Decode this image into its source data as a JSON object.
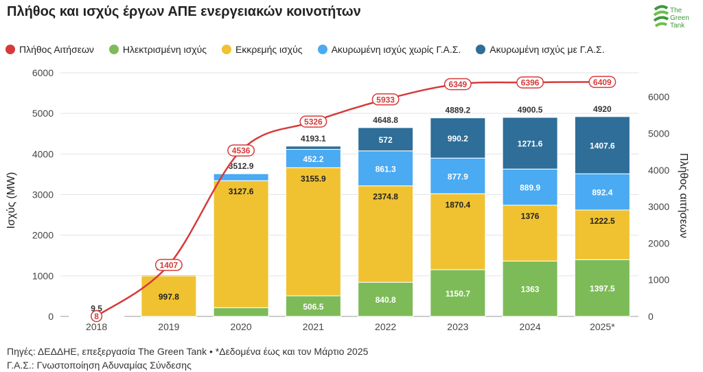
{
  "title": "Πλήθος και ισχύς έργων ΑΠΕ ενεργειακών κοινοτήτων",
  "logo": {
    "line1": "The",
    "line2": "Green",
    "line3": "Tank"
  },
  "legend": [
    {
      "label": "Πλήθος Αιτήσεων",
      "color": "#d63a3a"
    },
    {
      "label": "Ηλεκτρισμένη ισχύς",
      "color": "#7dbb58"
    },
    {
      "label": "Εκκρεμής ισχύς",
      "color": "#f0c232"
    },
    {
      "label": "Ακυρωμένη ισχύς χωρίς Γ.Α.Σ.",
      "color": "#4aaaf2"
    },
    {
      "label": "Ακυρωμένη ισχύς με Γ.Α.Σ.",
      "color": "#2e6e98"
    }
  ],
  "footer": {
    "line1": "Πηγές: ΔΕΔΔΗΕ, επεξεργασία The Green Tank • *Δεδομένα έως και τον Μάρτιο 2025",
    "line2": "Γ.Α.Σ.: Γνωστοποίηση Αδυναμίας Σύνδεσης"
  },
  "chart_data": {
    "type": "bar",
    "stacked": true,
    "categories": [
      "2018",
      "2019",
      "2020",
      "2021",
      "2022",
      "2023",
      "2024",
      "2025*"
    ],
    "ylabel": "Ισχύς (MW)",
    "ylim": [
      0,
      6000
    ],
    "yticks": [
      0,
      1000,
      2000,
      3000,
      4000,
      5000,
      6000
    ],
    "y2label": "Πλήθος αιτήσεων",
    "y2lim": [
      0,
      6660
    ],
    "y2ticks": [
      0,
      1000,
      2000,
      3000,
      4000,
      5000,
      6000
    ],
    "series": [
      {
        "name": "Ηλεκτρισμένη ισχύς",
        "color": "#7dbb58",
        "values": [
          0,
          0,
          215,
          506.5,
          840.8,
          1150.7,
          1363,
          1397.5
        ],
        "labels": [
          "",
          "",
          "",
          "506.5",
          "840.8",
          "1150.7",
          "1363",
          "1397.5"
        ],
        "label_color": "#ffffff"
      },
      {
        "name": "Εκκρεμής ισχύς",
        "color": "#f0c232",
        "values": [
          9.5,
          997.8,
          3127.6,
          3155.9,
          2374.8,
          1870.4,
          1376,
          1222.5
        ],
        "labels": [
          "",
          "997.8",
          "3127.6",
          "3155.9",
          "2374.8",
          "1870.4",
          "1376",
          "1222.5"
        ],
        "label_color": "#222222"
      },
      {
        "name": "Ακυρωμένη ισχύς χωρίς Γ.Α.Σ.",
        "color": "#4aaaf2",
        "values": [
          0,
          25.1,
          170.3,
          452.2,
          861.3,
          877.9,
          889.9,
          892.4
        ],
        "labels": [
          "",
          "",
          "",
          "452.2",
          "861.3",
          "877.9",
          "889.9",
          "892.4"
        ],
        "label_color": "#ffffff"
      },
      {
        "name": "Ακυρωμένη ισχύς με Γ.Α.Σ.",
        "color": "#2e6e98",
        "values": [
          0,
          0,
          0,
          78.5,
          572,
          990.2,
          1271.6,
          1407.6
        ],
        "labels": [
          "",
          "",
          "",
          "",
          "572",
          "990.2",
          "1271.6",
          "1407.6"
        ],
        "label_color": "#ffffff"
      }
    ],
    "totals": [
      "9.5",
      "1022.9",
      "3512.9",
      "4193.1",
      "4648.8",
      "4889.2",
      "4900.5",
      "4920"
    ],
    "line": {
      "name": "Πλήθος Αιτήσεων",
      "color": "#d63a3a",
      "axis": "right",
      "values": [
        8,
        1407,
        4536,
        5326,
        5933,
        6349,
        6396,
        6409
      ],
      "labels": [
        "8",
        "1407",
        "4536",
        "5326",
        "5933",
        "6349",
        "6396",
        "6409"
      ]
    },
    "grid": true
  }
}
